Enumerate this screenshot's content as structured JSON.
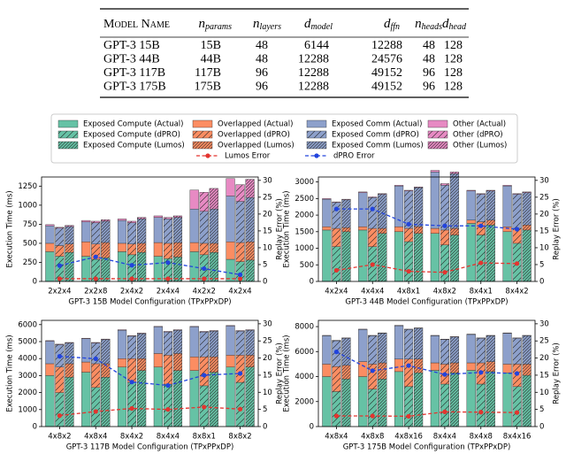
{
  "table": {
    "header": [
      {
        "text": "Model Name"
      },
      {
        "base": "n",
        "sub": "params"
      },
      {
        "base": "n",
        "sub": "layers"
      },
      {
        "base": "d",
        "sub": "model"
      },
      {
        "base": "d",
        "sub": "ffn"
      },
      {
        "base": "n",
        "sub": "heads"
      },
      {
        "base": "d",
        "sub": "head"
      }
    ],
    "rows": [
      [
        "GPT-3 15B",
        "15B",
        "48",
        "6144",
        "12288",
        "48",
        "128"
      ],
      [
        "GPT-3 44B",
        "44B",
        "48",
        "12288",
        "24576",
        "48",
        "128"
      ],
      [
        "GPT-3 117B",
        "117B",
        "96",
        "12288",
        "49152",
        "96",
        "128"
      ],
      [
        "GPT-3 175B",
        "175B",
        "96",
        "12288",
        "49152",
        "96",
        "128"
      ]
    ]
  },
  "chart_data": {
    "type": "bar",
    "series": [
      {
        "name": "Exposed Compute (Actual)",
        "color": "#66c2a5",
        "values": [
          [
            390,
            330,
            390,
            330,
            390,
            290
          ],
          [
            1550,
            1550,
            1500,
            1450,
            1750,
            1500
          ],
          [
            3000,
            3200,
            3500,
            3500,
            3300,
            3500
          ],
          [
            4000,
            4000,
            4400,
            4500,
            4500,
            4300
          ]
        ]
      },
      {
        "name": "Exposed Compute (dPRO)",
        "color": "#66c2a5",
        "hatch": "/",
        "values": [
          [
            330,
            290,
            350,
            300,
            350,
            260
          ],
          [
            1050,
            1050,
            1200,
            1100,
            1400,
            1150
          ],
          [
            2000,
            2300,
            2600,
            2500,
            2400,
            2600
          ],
          [
            2800,
            3000,
            3200,
            3400,
            3400,
            3200
          ]
        ]
      },
      {
        "name": "Exposed Compute (Lumos)",
        "color": "#66c2a5",
        "hatch": "//",
        "values": [
          [
            380,
            310,
            380,
            320,
            380,
            280
          ],
          [
            1500,
            1450,
            1450,
            1400,
            1700,
            1550
          ],
          [
            2900,
            2900,
            3300,
            3300,
            3200,
            3500
          ],
          [
            3800,
            3800,
            4300,
            4300,
            4400,
            4100
          ]
        ]
      },
      {
        "name": "Overlapped (Actual)",
        "color": "#fc8d62",
        "values": [
          [
            110,
            190,
            110,
            180,
            120,
            230
          ],
          [
            100,
            100,
            150,
            150,
            100,
            150
          ],
          [
            700,
            600,
            500,
            800,
            800,
            700
          ],
          [
            1000,
            1200,
            1000,
            600,
            600,
            700
          ]
        ]
      },
      {
        "name": "Overlapped (dPRO)",
        "color": "#fc8d62",
        "hatch": "/",
        "values": [
          [
            140,
            200,
            140,
            200,
            150,
            250
          ],
          [
            550,
            550,
            400,
            450,
            400,
            450
          ],
          [
            1500,
            1400,
            1400,
            1700,
            1700,
            1600
          ],
          [
            2000,
            2000,
            2200,
            1600,
            1700,
            1800
          ]
        ]
      },
      {
        "name": "Overlapped (Lumos)",
        "color": "#fc8d62",
        "hatch": "//",
        "values": [
          [
            110,
            200,
            120,
            190,
            120,
            240
          ],
          [
            120,
            150,
            200,
            200,
            150,
            150
          ],
          [
            800,
            800,
            700,
            1000,
            900,
            700
          ],
          [
            1100,
            1300,
            1100,
            800,
            800,
            900
          ]
        ]
      },
      {
        "name": "Exposed Comm (Actual)",
        "color": "#8da0cb",
        "values": [
          [
            230,
            260,
            300,
            330,
            440,
            600
          ],
          [
            830,
            1030,
            1230,
            1700,
            880,
            1230
          ],
          [
            1330,
            1370,
            1670,
            1570,
            1770,
            1720
          ],
          [
            2270,
            2570,
            2670,
            2170,
            2270,
            2470
          ]
        ]
      },
      {
        "name": "Exposed Comm (dPRO)",
        "color": "#8da0cb",
        "hatch": "/",
        "values": [
          [
            230,
            280,
            280,
            320,
            420,
            540
          ],
          [
            780,
            930,
            1130,
            1350,
            830,
            1030
          ],
          [
            1320,
            1220,
            1320,
            1370,
            1470,
            1420
          ],
          [
            2070,
            2270,
            2370,
            1970,
            1970,
            2070
          ]
        ]
      },
      {
        "name": "Exposed Comm (Lumos)",
        "color": "#8da0cb",
        "hatch": "//",
        "values": [
          [
            230,
            280,
            320,
            330,
            450,
            580
          ],
          [
            840,
            1030,
            1180,
            1650,
            880,
            980
          ],
          [
            1220,
            1420,
            1470,
            1370,
            1520,
            1470
          ],
          [
            2170,
            2370,
            2470,
            2070,
            2070,
            2270
          ]
        ]
      },
      {
        "name": "Other (Actual)",
        "color": "#e78ac3",
        "values": [
          [
            15,
            20,
            20,
            20,
            250,
            230
          ],
          [
            20,
            20,
            20,
            50,
            20,
            20
          ],
          [
            30,
            30,
            30,
            30,
            30,
            30
          ],
          [
            30,
            30,
            30,
            30,
            30,
            30
          ]
        ]
      },
      {
        "name": "Other (dPRO)",
        "color": "#e78ac3",
        "hatch": "/",
        "values": [
          [
            10,
            20,
            20,
            20,
            250,
            220
          ],
          [
            20,
            20,
            20,
            50,
            20,
            20
          ],
          [
            30,
            30,
            30,
            30,
            30,
            30
          ],
          [
            30,
            30,
            30,
            30,
            30,
            30
          ]
        ]
      },
      {
        "name": "Other (Lumos)",
        "color": "#e78ac3",
        "hatch": "//",
        "values": [
          [
            15,
            20,
            20,
            20,
            270,
            240
          ],
          [
            20,
            20,
            20,
            50,
            20,
            20
          ],
          [
            30,
            30,
            30,
            30,
            30,
            30
          ],
          [
            30,
            30,
            30,
            30,
            30,
            30
          ]
        ]
      },
      {
        "name": "Lumos Error",
        "color": "#e3342f",
        "axis": "y2",
        "values": [
          [
            0.8,
            0.8,
            0.8,
            0.8,
            0.8,
            0.8
          ],
          [
            3.3,
            5.0,
            3.0,
            2.7,
            5.5,
            5.3
          ],
          [
            3.2,
            4.4,
            5.3,
            5.0,
            5.7,
            5.1
          ],
          [
            3.1,
            3.1,
            3.0,
            4.3,
            4.2,
            4.1
          ]
        ]
      },
      {
        "name": "dPRO Error",
        "color": "#2244dd",
        "axis": "y2",
        "values": [
          [
            4.7,
            7.3,
            4.8,
            5.6,
            3.8,
            2.0
          ],
          [
            21.5,
            21.5,
            17,
            16.5,
            16.5,
            15.5
          ],
          [
            20.5,
            19.8,
            13,
            12,
            15,
            15.5
          ],
          [
            21.8,
            16.3,
            17.8,
            15.2,
            15.8,
            15.5
          ]
        ]
      }
    ],
    "panels": [
      {
        "xlabel": "GPT-3 15B Model Configuration (TPxPPxDP)",
        "ylabel": "Execution Time (ms)",
        "y2label": "Replay Error (%)",
        "categories": [
          "2x2x4",
          "2x2x8",
          "2x4x2",
          "2x4x4",
          "4x2x2",
          "4x2x4"
        ],
        "ylim": [
          0,
          1370
        ],
        "yticks": [
          0,
          250,
          500,
          750,
          1000,
          1250
        ],
        "y2lim": [
          0,
          31
        ],
        "y2ticks": [
          0,
          5,
          10,
          15,
          20,
          25,
          30
        ]
      },
      {
        "xlabel": "GPT-3 44B Model Configuration (TPxPPxDP)",
        "ylabel": "Execution Time (ms)",
        "y2label": "Replay Error (%)",
        "categories": [
          "4x2x4",
          "4x4x4",
          "4x8x1",
          "4x8x2",
          "8x4x1",
          "8x4x2"
        ],
        "ylim": [
          0,
          3150
        ],
        "yticks": [
          0,
          500,
          1000,
          1500,
          2000,
          2500,
          3000
        ],
        "y2lim": [
          0,
          31
        ],
        "y2ticks": [
          0,
          5,
          10,
          15,
          20,
          25,
          30
        ]
      },
      {
        "xlabel": "GPT-3 117B Model Configuration (TPxPPxDP)",
        "ylabel": "Execution Time (ms)",
        "y2label": "Replay Error (%)",
        "categories": [
          "4x8x2",
          "4x8x4",
          "8x4x2",
          "8x4x4",
          "8x8x1",
          "8x8x2"
        ],
        "ylim": [
          0,
          6250
        ],
        "yticks": [
          0,
          1000,
          2000,
          3000,
          4000,
          5000,
          6000
        ],
        "y2lim": [
          0,
          31
        ],
        "y2ticks": [
          0,
          5,
          10,
          15,
          20,
          25,
          30
        ]
      },
      {
        "xlabel": "GPT-3 175B Model Configuration (TPxPPxDP)",
        "ylabel": "Execution Time (ms)",
        "y2label": "Replay Error (%)",
        "categories": [
          "4x8x4",
          "4x8x8",
          "4x8x16",
          "8x4x4",
          "8x4x8",
          "8x4x16"
        ],
        "ylim": [
          0,
          8500
        ],
        "yticks": [
          0,
          2000,
          4000,
          6000,
          8000
        ],
        "y2lim": [
          0,
          31
        ],
        "y2ticks": [
          0,
          5,
          10,
          15,
          20,
          25,
          30
        ]
      }
    ]
  }
}
